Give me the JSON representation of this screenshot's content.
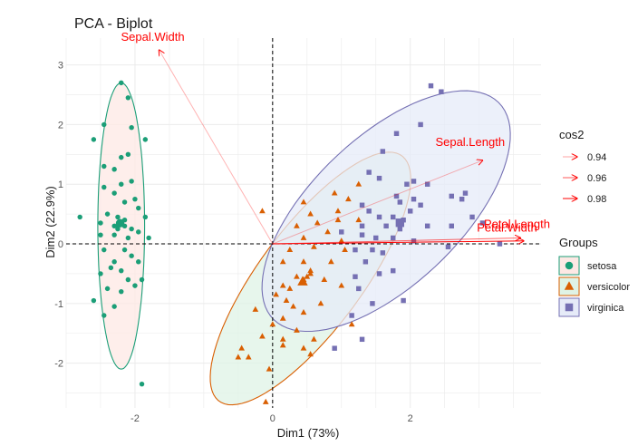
{
  "chart_data": {
    "type": "scatter",
    "title": "PCA - Biplot",
    "xlabel": "Dim1 (73%)",
    "ylabel": "Dim2 (22.9%)",
    "xlim": [
      -3.0,
      3.9
    ],
    "ylim": [
      -2.75,
      3.45
    ],
    "x_ticks": [
      -2,
      0,
      2
    ],
    "y_ticks": [
      -2,
      -1,
      0,
      1,
      2,
      3
    ],
    "grid": true,
    "colors": {
      "setosa": "#1b9e77",
      "versicolor": "#d95f02",
      "virginica": "#7570b3",
      "arrow": "#ff0000",
      "ellipse_fill_setosa": "#fde8e4",
      "ellipse_fill_versicolor": "#dff3e6",
      "ellipse_fill_virginica": "#e6ebf8"
    },
    "legend_cos2": {
      "title": "cos2",
      "entries": [
        {
          "label": "0.94",
          "opacity": 0.35
        },
        {
          "label": "0.96",
          "opacity": 0.65
        },
        {
          "label": "0.98",
          "opacity": 1.0
        }
      ]
    },
    "legend_groups": {
      "title": "Groups",
      "entries": [
        {
          "label": "setosa",
          "shape": "circle",
          "color": "#1b9e77"
        },
        {
          "label": "versicolor",
          "shape": "triangle",
          "color": "#d95f02"
        },
        {
          "label": "virginica",
          "shape": "square",
          "color": "#7570b3"
        }
      ]
    },
    "variables": [
      {
        "name": "Sepal.Width",
        "x": -1.65,
        "y": 3.25,
        "cos2": 0.94
      },
      {
        "name": "Sepal.Length",
        "x": 3.05,
        "y": 1.4,
        "cos2": 0.94
      },
      {
        "name": "Petal.Width",
        "x": 3.6,
        "y": 0.1,
        "cos2": 0.96
      },
      {
        "name": "Petal.Length",
        "x": 3.65,
        "y": 0.05,
        "cos2": 0.98
      }
    ],
    "ellipses": [
      {
        "group": "setosa",
        "cx": -2.2,
        "cy": 0.3,
        "rx": 0.34,
        "ry": 2.4,
        "angle": 0
      },
      {
        "group": "versicolor",
        "cx": 0.55,
        "cy": -0.58,
        "rx": 2.45,
        "ry": 0.78,
        "angle": 58
      },
      {
        "group": "virginica",
        "cx": 1.65,
        "cy": 0.55,
        "rx": 2.45,
        "ry": 1.15,
        "angle": 50
      }
    ],
    "series": [
      {
        "name": "setosa",
        "shape": "circle",
        "points": [
          [
            -2.2,
            2.7
          ],
          [
            -2.1,
            2.45
          ],
          [
            -2.45,
            2.0
          ],
          [
            -2.05,
            1.95
          ],
          [
            -1.85,
            1.75
          ],
          [
            -2.6,
            1.75
          ],
          [
            -2.2,
            1.45
          ],
          [
            -2.1,
            1.5
          ],
          [
            -2.45,
            1.3
          ],
          [
            -2.3,
            1.25
          ],
          [
            -2.05,
            1.05
          ],
          [
            -2.2,
            1.0
          ],
          [
            -2.45,
            0.95
          ],
          [
            -2.3,
            0.85
          ],
          [
            -2.0,
            0.75
          ],
          [
            -2.15,
            0.7
          ],
          [
            -1.95,
            0.6
          ],
          [
            -2.4,
            0.5
          ],
          [
            -2.25,
            0.45
          ],
          [
            -2.15,
            0.4
          ],
          [
            -2.5,
            0.35
          ],
          [
            -2.8,
            0.45
          ],
          [
            -1.85,
            0.45
          ],
          [
            -2.3,
            0.3
          ],
          [
            -2.25,
            0.25
          ],
          [
            -2.15,
            0.3
          ],
          [
            -2.05,
            0.25
          ],
          [
            -1.95,
            0.2
          ],
          [
            -2.5,
            0.15
          ],
          [
            -2.3,
            0.15
          ],
          [
            -2.1,
            0.1
          ],
          [
            -1.8,
            0.1
          ],
          [
            -2.45,
            -0.1
          ],
          [
            -2.15,
            -0.1
          ],
          [
            -2.05,
            -0.2
          ],
          [
            -2.3,
            -0.3
          ],
          [
            -1.95,
            -0.3
          ],
          [
            -2.2,
            -0.45
          ],
          [
            -2.5,
            -0.5
          ],
          [
            -2.35,
            -0.4
          ],
          [
            -2.1,
            -0.6
          ],
          [
            -1.9,
            -0.6
          ],
          [
            -2.0,
            -0.7
          ],
          [
            -2.4,
            -0.75
          ],
          [
            -2.2,
            -0.8
          ],
          [
            -2.6,
            -0.95
          ],
          [
            -2.3,
            -1.05
          ],
          [
            -2.45,
            -1.2
          ],
          [
            -1.9,
            -2.35
          ],
          [
            -2.25,
            0.3
          ]
        ]
      },
      {
        "name": "versicolor",
        "shape": "triangle",
        "points": [
          [
            1.25,
            1.0
          ],
          [
            0.9,
            0.85
          ],
          [
            1.1,
            0.75
          ],
          [
            0.45,
            0.7
          ],
          [
            0.95,
            0.55
          ],
          [
            -0.15,
            0.55
          ],
          [
            0.55,
            0.5
          ],
          [
            0.95,
            0.4
          ],
          [
            0.65,
            0.35
          ],
          [
            1.25,
            0.4
          ],
          [
            0.35,
            0.3
          ],
          [
            0.8,
            0.2
          ],
          [
            0.45,
            0.1
          ],
          [
            1.0,
            0.05
          ],
          [
            0.6,
            -0.05
          ],
          [
            0.25,
            -0.1
          ],
          [
            1.05,
            -0.1
          ],
          [
            0.15,
            -0.3
          ],
          [
            0.85,
            -0.3
          ],
          [
            0.45,
            -0.3
          ],
          [
            0.55,
            -0.45
          ],
          [
            0.35,
            -0.55
          ],
          [
            0.55,
            -0.5
          ],
          [
            0.5,
            -0.55
          ],
          [
            0.45,
            -0.6
          ],
          [
            0.75,
            -0.6
          ],
          [
            0.15,
            -0.7
          ],
          [
            0.25,
            -0.75
          ],
          [
            0.05,
            -0.85
          ],
          [
            1.0,
            -0.7
          ],
          [
            0.2,
            -0.95
          ],
          [
            0.3,
            -1.05
          ],
          [
            0.7,
            -1.0
          ],
          [
            0.45,
            -1.15
          ],
          [
            -0.25,
            -1.1
          ],
          [
            0.15,
            -1.25
          ],
          [
            0.0,
            -1.35
          ],
          [
            1.15,
            -1.35
          ],
          [
            0.35,
            -1.45
          ],
          [
            -0.15,
            -1.55
          ],
          [
            0.15,
            -1.6
          ],
          [
            0.6,
            -1.6
          ],
          [
            -0.45,
            -1.75
          ],
          [
            0.15,
            -1.7
          ],
          [
            -0.35,
            -1.9
          ],
          [
            0.45,
            -1.75
          ],
          [
            0.55,
            -1.85
          ],
          [
            -0.05,
            -2.1
          ],
          [
            -0.5,
            -1.9
          ],
          [
            -0.1,
            -2.65
          ]
        ]
      },
      {
        "name": "virginica",
        "shape": "square",
        "points": [
          [
            2.3,
            2.65
          ],
          [
            2.45,
            2.55
          ],
          [
            2.15,
            2.0
          ],
          [
            1.8,
            1.85
          ],
          [
            1.6,
            1.55
          ],
          [
            1.4,
            1.2
          ],
          [
            1.55,
            1.1
          ],
          [
            1.95,
            1.0
          ],
          [
            2.05,
            1.05
          ],
          [
            2.25,
            1.0
          ],
          [
            1.8,
            0.8
          ],
          [
            1.85,
            0.7
          ],
          [
            2.15,
            0.65
          ],
          [
            2.05,
            0.75
          ],
          [
            2.6,
            0.8
          ],
          [
            2.8,
            0.85
          ],
          [
            2.75,
            0.75
          ],
          [
            1.3,
            0.65
          ],
          [
            1.4,
            0.55
          ],
          [
            1.55,
            0.45
          ],
          [
            1.75,
            0.45
          ],
          [
            2.0,
            0.55
          ],
          [
            1.9,
            0.4
          ],
          [
            1.3,
            0.3
          ],
          [
            1.65,
            0.3
          ],
          [
            1.85,
            0.25
          ],
          [
            2.25,
            0.3
          ],
          [
            2.6,
            0.3
          ],
          [
            3.05,
            0.35
          ],
          [
            1.0,
            0.2
          ],
          [
            1.3,
            0.15
          ],
          [
            1.5,
            0.1
          ],
          [
            1.75,
            0.1
          ],
          [
            2.05,
            0.05
          ],
          [
            1.2,
            -0.1
          ],
          [
            1.45,
            -0.1
          ],
          [
            1.6,
            -0.15
          ],
          [
            1.35,
            -0.3
          ],
          [
            1.2,
            -0.55
          ],
          [
            1.55,
            -0.5
          ],
          [
            1.25,
            -0.75
          ],
          [
            1.75,
            -0.45
          ],
          [
            1.45,
            -1.0
          ],
          [
            1.15,
            -1.2
          ],
          [
            1.9,
            -0.95
          ],
          [
            1.3,
            -1.6
          ],
          [
            0.9,
            -1.75
          ],
          [
            3.3,
            0.0
          ],
          [
            2.9,
            0.45
          ],
          [
            2.55,
            -0.05
          ]
        ]
      }
    ]
  }
}
